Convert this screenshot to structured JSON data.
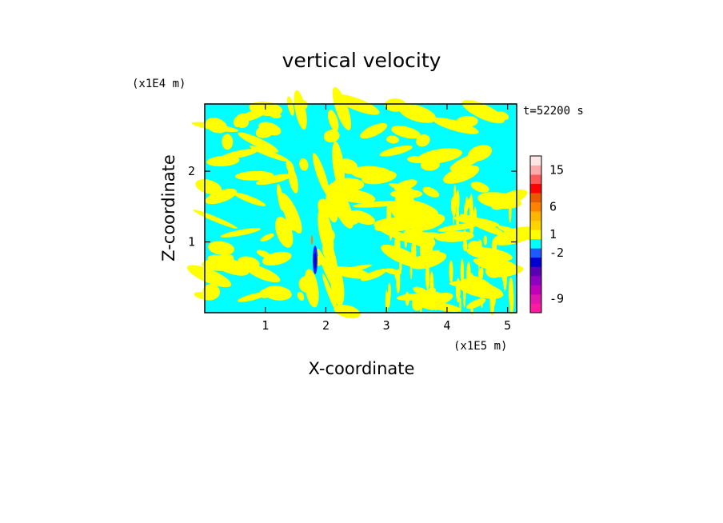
{
  "chart_data": {
    "type": "heatmap",
    "title": "vertical velocity",
    "xlabel": "X-coordinate",
    "ylabel": "Z-coordinate",
    "x_unit": "(x1E5 m)",
    "y_unit": "(x1E4 m)",
    "time_label": "t=52200 s",
    "xlim": [
      0,
      5.15
    ],
    "ylim": [
      0,
      2.95
    ],
    "x_ticks": [
      1,
      2,
      3,
      4,
      5
    ],
    "y_ticks": [
      1,
      2
    ],
    "x_tick_labels": [
      "1",
      "2",
      "3",
      "4",
      "5"
    ],
    "y_tick_labels": [
      "1",
      "2"
    ],
    "grid": false,
    "field_colors": {
      "positive": "#ffff00",
      "negative": "#00ffff"
    },
    "colorbar": {
      "colors": [
        "#ff1aa0",
        "#e016b0",
        "#c000b8",
        "#9000c0",
        "#5a00b4",
        "#0000d0",
        "#1e5aff",
        "#00ffff",
        "#ffff00",
        "#ffd200",
        "#ffb400",
        "#ff8200",
        "#e85a00",
        "#ff0000",
        "#ff5a5a",
        "#ffaaaa",
        "#ffe6e6"
      ],
      "tick_labels": [
        "-9",
        "-2",
        "1",
        "6",
        "15"
      ],
      "tick_levels": [
        -9,
        -2,
        1,
        6,
        15
      ]
    }
  }
}
